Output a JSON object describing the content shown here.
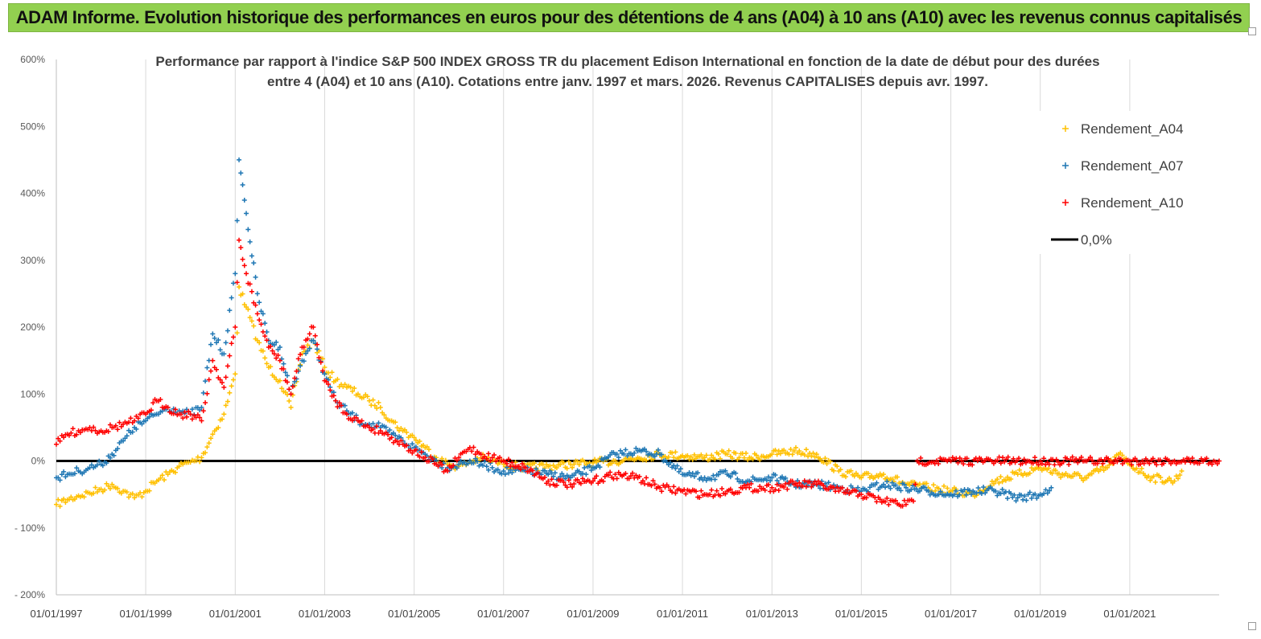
{
  "banner_title": "ADAM Informe. Evolution historique des performances en euros pour des détentions de 4 ans (A04) à 10 ans (A10) avec les revenus connus capitalisés",
  "colors": {
    "banner_bg": "#92d050",
    "a04": "#ffc000",
    "a07": "#1f77b4",
    "a10": "#ff0000",
    "zero_line": "#000000",
    "grid": "#d9d9d9"
  },
  "chart_data": {
    "type": "scatter",
    "title_lines": [
      "Performance par rapport à l'indice S&P 500 INDEX GROSS TR  du placement Edison International en fonction de la date de début pour des durées",
      "entre 4 (A04) et 10 ans (A10).  Cotations entre janv. 1997 et mars. 2026. Revenus CAPITALISES depuis avr. 1997."
    ],
    "xlabel": "",
    "ylabel": "",
    "x_range": [
      "1997-01-01",
      "2023-01-01"
    ],
    "y_range": [
      -200,
      600
    ],
    "y_ticks": [
      -200,
      -100,
      0,
      100,
      200,
      300,
      400,
      500,
      600
    ],
    "y_tick_labels": [
      "- 200%",
      "- 100%",
      "0%",
      "100%",
      "200%",
      "300%",
      "400%",
      "500%",
      "600%"
    ],
    "x_ticks": [
      "1997-01-01",
      "1999-01-01",
      "2001-01-01",
      "2003-01-01",
      "2005-01-01",
      "2007-01-01",
      "2009-01-01",
      "2011-01-01",
      "2013-01-01",
      "2015-01-01",
      "2017-01-01",
      "2019-01-01",
      "2021-01-01"
    ],
    "x_tick_labels": [
      "01/01/1997",
      "01/01/1999",
      "01/01/2001",
      "01/01/2003",
      "01/01/2005",
      "01/01/2007",
      "01/01/2009",
      "01/01/2011",
      "01/01/2013",
      "01/01/2015",
      "01/01/2017",
      "01/01/2019",
      "01/01/2021"
    ],
    "grid": "vertical",
    "legend_position": "top-right",
    "marker": "+",
    "series": [
      {
        "name": "Rendement_A04",
        "color": "#ffc000",
        "points": [
          [
            "1997-01-01",
            -65
          ],
          [
            "1997-04-01",
            -58
          ],
          [
            "1997-07-01",
            -52
          ],
          [
            "1997-10-01",
            -48
          ],
          [
            "1998-01-01",
            -42
          ],
          [
            "1998-04-01",
            -35
          ],
          [
            "1998-07-01",
            -45
          ],
          [
            "1998-10-01",
            -55
          ],
          [
            "1999-01-01",
            -45
          ],
          [
            "1999-04-01",
            -30
          ],
          [
            "1999-07-01",
            -20
          ],
          [
            "1999-10-01",
            -8
          ],
          [
            "2000-01-01",
            -2
          ],
          [
            "2000-04-01",
            5
          ],
          [
            "2000-07-01",
            40
          ],
          [
            "2000-10-01",
            70
          ],
          [
            "2001-01-01",
            130
          ],
          [
            "2001-02-01",
            260
          ],
          [
            "2001-04-01",
            230
          ],
          [
            "2001-07-01",
            180
          ],
          [
            "2001-10-01",
            140
          ],
          [
            "2002-01-01",
            120
          ],
          [
            "2002-04-01",
            80
          ],
          [
            "2002-07-01",
            160
          ],
          [
            "2002-10-01",
            180
          ],
          [
            "2003-01-01",
            140
          ],
          [
            "2003-04-01",
            120
          ],
          [
            "2003-07-01",
            110
          ],
          [
            "2003-10-01",
            100
          ],
          [
            "2004-01-01",
            90
          ],
          [
            "2004-04-01",
            80
          ],
          [
            "2004-07-01",
            60
          ],
          [
            "2004-10-01",
            45
          ],
          [
            "2005-01-01",
            35
          ],
          [
            "2005-04-01",
            20
          ],
          [
            "2005-07-01",
            5
          ],
          [
            "2005-10-01",
            -5
          ],
          [
            "2006-01-01",
            -8
          ],
          [
            "2006-04-01",
            -2
          ],
          [
            "2006-07-01",
            5
          ],
          [
            "2006-10-01",
            0
          ],
          [
            "2007-01-01",
            -5
          ],
          [
            "2007-07-01",
            -10
          ],
          [
            "2008-01-01",
            -8
          ],
          [
            "2008-07-01",
            -5
          ],
          [
            "2009-01-01",
            -3
          ],
          [
            "2009-07-01",
            0
          ],
          [
            "2010-01-01",
            5
          ],
          [
            "2010-07-01",
            10
          ],
          [
            "2011-01-01",
            8
          ],
          [
            "2011-07-01",
            5
          ],
          [
            "2012-01-01",
            10
          ],
          [
            "2012-07-01",
            5
          ],
          [
            "2013-01-01",
            10
          ],
          [
            "2013-07-01",
            15
          ],
          [
            "2014-01-01",
            10
          ],
          [
            "2014-07-01",
            -15
          ],
          [
            "2015-01-01",
            -25
          ],
          [
            "2015-07-01",
            -20
          ],
          [
            "2016-01-01",
            -35
          ],
          [
            "2016-07-01",
            -40
          ],
          [
            "2017-01-01",
            -45
          ],
          [
            "2017-07-01",
            -50
          ],
          [
            "2018-01-01",
            -30
          ],
          [
            "2018-07-01",
            -20
          ],
          [
            "2019-01-01",
            -10
          ],
          [
            "2019-07-01",
            -20
          ],
          [
            "2020-01-01",
            -25
          ],
          [
            "2020-07-01",
            -10
          ],
          [
            "2020-10-01",
            10
          ],
          [
            "2021-01-01",
            -5
          ],
          [
            "2021-07-01",
            -25
          ],
          [
            "2022-01-01",
            -30
          ],
          [
            "2022-03-01",
            -15
          ]
        ]
      },
      {
        "name": "Rendement_A07",
        "color": "#1f77b4",
        "points": [
          [
            "1997-01-01",
            -25
          ],
          [
            "1997-04-01",
            -20
          ],
          [
            "1997-07-01",
            -15
          ],
          [
            "1997-10-01",
            -10
          ],
          [
            "1998-01-01",
            -5
          ],
          [
            "1998-04-01",
            10
          ],
          [
            "1998-07-01",
            30
          ],
          [
            "1998-10-01",
            50
          ],
          [
            "1999-01-01",
            60
          ],
          [
            "1999-04-01",
            70
          ],
          [
            "1999-07-01",
            80
          ],
          [
            "1999-10-01",
            75
          ],
          [
            "2000-01-01",
            70
          ],
          [
            "2000-04-01",
            80
          ],
          [
            "2000-07-01",
            190
          ],
          [
            "2000-10-01",
            160
          ],
          [
            "2001-01-01",
            280
          ],
          [
            "2001-02-01",
            450
          ],
          [
            "2001-04-01",
            370
          ],
          [
            "2001-07-01",
            250
          ],
          [
            "2001-10-01",
            180
          ],
          [
            "2002-01-01",
            170
          ],
          [
            "2002-04-01",
            100
          ],
          [
            "2002-07-01",
            150
          ],
          [
            "2002-10-01",
            180
          ],
          [
            "2003-01-01",
            130
          ],
          [
            "2003-04-01",
            90
          ],
          [
            "2003-07-01",
            75
          ],
          [
            "2003-10-01",
            60
          ],
          [
            "2004-01-01",
            55
          ],
          [
            "2004-04-01",
            50
          ],
          [
            "2004-07-01",
            40
          ],
          [
            "2004-10-01",
            30
          ],
          [
            "2005-01-01",
            20
          ],
          [
            "2005-04-01",
            10
          ],
          [
            "2005-07-01",
            0
          ],
          [
            "2005-10-01",
            -10
          ],
          [
            "2006-01-01",
            -5
          ],
          [
            "2006-04-01",
            0
          ],
          [
            "2006-07-01",
            -5
          ],
          [
            "2006-10-01",
            -10
          ],
          [
            "2007-01-01",
            -15
          ],
          [
            "2007-07-01",
            -15
          ],
          [
            "2008-01-01",
            -20
          ],
          [
            "2008-07-01",
            -25
          ],
          [
            "2009-01-01",
            -10
          ],
          [
            "2009-07-01",
            10
          ],
          [
            "2010-01-01",
            15
          ],
          [
            "2010-07-01",
            10
          ],
          [
            "2011-01-01",
            -20
          ],
          [
            "2011-07-01",
            -25
          ],
          [
            "2012-01-01",
            -20
          ],
          [
            "2012-07-01",
            -30
          ],
          [
            "2013-01-01",
            -25
          ],
          [
            "2013-07-01",
            -35
          ],
          [
            "2014-01-01",
            -35
          ],
          [
            "2014-07-01",
            -40
          ],
          [
            "2015-01-01",
            -45
          ],
          [
            "2015-07-01",
            -35
          ],
          [
            "2016-01-01",
            -40
          ],
          [
            "2016-07-01",
            -45
          ],
          [
            "2017-01-01",
            -50
          ],
          [
            "2017-07-01",
            -45
          ],
          [
            "2018-01-01",
            -45
          ],
          [
            "2018-07-01",
            -55
          ],
          [
            "2019-01-01",
            -50
          ],
          [
            "2019-04-01",
            -40
          ]
        ]
      },
      {
        "name": "Rendement_A10",
        "color": "#ff0000",
        "points": [
          [
            "1997-01-01",
            25
          ],
          [
            "1997-04-01",
            40
          ],
          [
            "1997-07-01",
            45
          ],
          [
            "1997-10-01",
            50
          ],
          [
            "1998-01-01",
            45
          ],
          [
            "1998-04-01",
            50
          ],
          [
            "1998-07-01",
            55
          ],
          [
            "1998-10-01",
            60
          ],
          [
            "1999-01-01",
            70
          ],
          [
            "1999-04-01",
            90
          ],
          [
            "1999-07-01",
            80
          ],
          [
            "1999-10-01",
            70
          ],
          [
            "2000-01-01",
            70
          ],
          [
            "2000-04-01",
            60
          ],
          [
            "2000-07-01",
            150
          ],
          [
            "2000-10-01",
            110
          ],
          [
            "2001-01-01",
            200
          ],
          [
            "2001-02-01",
            330
          ],
          [
            "2001-04-01",
            280
          ],
          [
            "2001-07-01",
            220
          ],
          [
            "2001-10-01",
            170
          ],
          [
            "2002-01-01",
            150
          ],
          [
            "2002-04-01",
            100
          ],
          [
            "2002-07-01",
            170
          ],
          [
            "2002-10-01",
            200
          ],
          [
            "2003-01-01",
            120
          ],
          [
            "2003-04-01",
            90
          ],
          [
            "2003-07-01",
            70
          ],
          [
            "2003-10-01",
            60
          ],
          [
            "2004-01-01",
            50
          ],
          [
            "2004-04-01",
            45
          ],
          [
            "2004-07-01",
            35
          ],
          [
            "2004-10-01",
            25
          ],
          [
            "2005-01-01",
            15
          ],
          [
            "2005-04-01",
            5
          ],
          [
            "2005-07-01",
            -5
          ],
          [
            "2005-10-01",
            -15
          ],
          [
            "2006-01-01",
            5
          ],
          [
            "2006-04-01",
            20
          ],
          [
            "2006-07-01",
            10
          ],
          [
            "2006-10-01",
            5
          ],
          [
            "2007-01-01",
            0
          ],
          [
            "2007-07-01",
            -10
          ],
          [
            "2008-01-01",
            -30
          ],
          [
            "2008-07-01",
            -35
          ],
          [
            "2009-01-01",
            -30
          ],
          [
            "2009-07-01",
            -20
          ],
          [
            "2010-01-01",
            -25
          ],
          [
            "2010-07-01",
            -40
          ],
          [
            "2011-01-01",
            -45
          ],
          [
            "2011-07-01",
            -50
          ],
          [
            "2012-01-01",
            -45
          ],
          [
            "2012-07-01",
            -40
          ],
          [
            "2013-01-01",
            -40
          ],
          [
            "2013-07-01",
            -35
          ],
          [
            "2014-01-01",
            -35
          ],
          [
            "2014-07-01",
            -45
          ],
          [
            "2015-01-01",
            -50
          ],
          [
            "2015-07-01",
            -60
          ],
          [
            "2016-01-01",
            -65
          ],
          [
            "2016-03-01",
            -60
          ],
          [
            "2016-04-01",
            0
          ],
          [
            "2017-01-01",
            0
          ],
          [
            "2018-01-01",
            0
          ],
          [
            "2019-01-01",
            0
          ],
          [
            "2020-01-01",
            0
          ],
          [
            "2021-01-01",
            0
          ],
          [
            "2022-01-01",
            0
          ],
          [
            "2023-01-01",
            0
          ]
        ]
      }
    ],
    "reference_line": {
      "name": "0,0%",
      "value": 0,
      "color": "#000000"
    }
  }
}
